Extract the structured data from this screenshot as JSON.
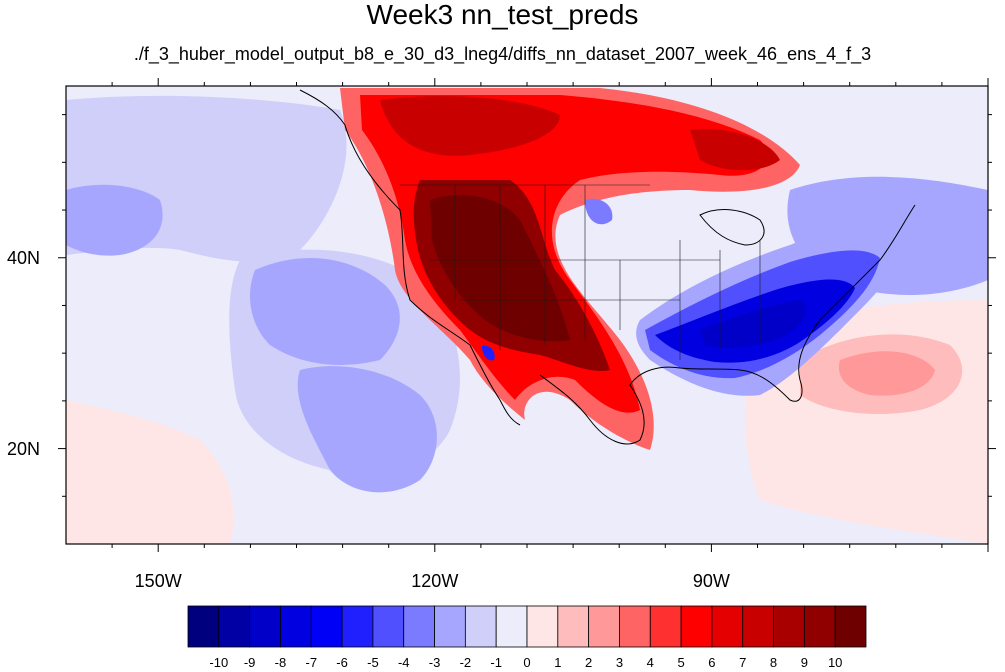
{
  "title": "Week3 nn_test_preds",
  "subtitle": "./f_3_huber_model_output_b8_e_30_d3_lneg4/diffs_nn_dataset_2007_week_46_ens_4_f_3",
  "map": {
    "lon_range": [
      -160,
      -60
    ],
    "lat_range": [
      10,
      58
    ],
    "lon_tick_labels": [
      {
        "lon": -150,
        "text": "150W"
      },
      {
        "lon": -120,
        "text": "120W"
      },
      {
        "lon": -90,
        "text": "90W"
      }
    ],
    "lat_tick_labels": [
      {
        "lat": 40,
        "text": "40N"
      },
      {
        "lat": 20,
        "text": "20N"
      }
    ]
  },
  "colorbar": {
    "levels": [
      "-10",
      "-9",
      "-8",
      "-7",
      "-6",
      "-5",
      "-4",
      "-3",
      "-2",
      "-1",
      "0",
      "1",
      "2",
      "3",
      "4",
      "5",
      "6",
      "7",
      "8",
      "9",
      "10"
    ],
    "colors": [
      "#00007f",
      "#0000a4",
      "#0000c8",
      "#0000e0",
      "#0000f6",
      "#2020ff",
      "#5050ff",
      "#7b7bff",
      "#a6a6ff",
      "#cfcffa",
      "#ececfa",
      "#ffe6e6",
      "#ffbcbc",
      "#ff9898",
      "#ff6464",
      "#ff3030",
      "#ff0000",
      "#e40000",
      "#c80000",
      "#a80000",
      "#900000",
      "#6e0000"
    ]
  }
}
